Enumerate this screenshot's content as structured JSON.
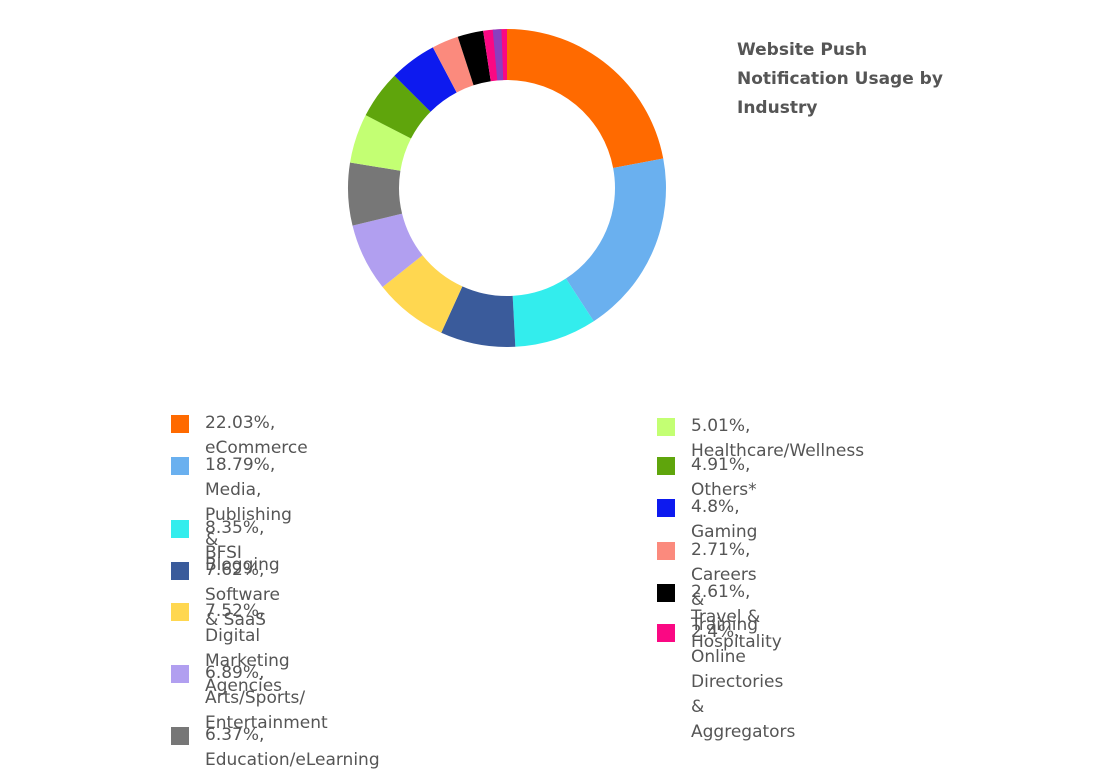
{
  "chart_data": {
    "type": "pie",
    "title": "Website Push Notification Usage by Industry",
    "unit": "%",
    "slices": [
      {
        "label": "22.03%, eCommerce",
        "name": "eCommerce",
        "value": 22.03,
        "color": "#ff6a00"
      },
      {
        "label": "18.79%, Media, Publishing & Blogging",
        "name": "Media, Publishing & Blogging",
        "value": 18.79,
        "color": "#6ab0ef"
      },
      {
        "label": "8.35%, BFSI",
        "name": "BFSI",
        "value": 8.35,
        "color": "#33eded"
      },
      {
        "label": "7.62%, Software & SaaS",
        "name": "Software & SaaS",
        "value": 7.62,
        "color": "#3a5b9b"
      },
      {
        "label": "7.52%, Digital Marketing Agencies",
        "name": "Digital Marketing Agencies",
        "value": 7.52,
        "color": "#ffd750"
      },
      {
        "label": "6.89%, Arts/Sports/ Entertainment",
        "name": "Arts/Sports/ Entertainment",
        "value": 6.89,
        "color": "#b19ff0"
      },
      {
        "label": "6.37%, Education/eLearning",
        "name": "Education/eLearning",
        "value": 6.37,
        "color": "#777777"
      },
      {
        "label": "5.01%, Healthcare/Wellness",
        "name": "Healthcare/Wellness",
        "value": 5.01,
        "color": "#c3ff73"
      },
      {
        "label": "4.91%, Others*",
        "name": "Others*",
        "value": 4.91,
        "color": "#5fa50c"
      },
      {
        "label": "4.8%, Gaming",
        "name": "Gaming",
        "value": 4.8,
        "color": "#0d1aef"
      },
      {
        "label": "2.71%, Careers & Training",
        "name": "Careers & Training",
        "value": 2.71,
        "color": "#fb8a7d"
      },
      {
        "label": "2.61%, Travel & Hospitality",
        "name": "Travel & Hospitality",
        "value": 2.61,
        "color": "#000000"
      },
      {
        "label": "2.4%, Online Directories & Aggregators",
        "name": "Online Directories & Aggregators",
        "value": 2.4,
        "color": "#fa0883"
      }
    ],
    "legend": {
      "left_column": [
        {
          "line1": "22.03%, eCommerce",
          "line2": "",
          "color": "#ff6a00"
        },
        {
          "line1": "18.79%, Media, Publishing &",
          "line2": "Blogging",
          "color": "#6ab0ef"
        },
        {
          "line1": "8.35%, BFSI",
          "line2": "",
          "color": "#33eded"
        },
        {
          "line1": "7.62%, Software & SaaS",
          "line2": "",
          "color": "#3a5b9b"
        },
        {
          "line1": "7.52%, Digital Marketing",
          "line2": "Agencies",
          "color": "#ffd750"
        },
        {
          "line1": "6.89%, Arts/Sports/",
          "line2": "Entertainment",
          "color": "#b19ff0"
        },
        {
          "line1": "6.37%, Education/eLearning",
          "line2": "",
          "color": "#777777"
        }
      ],
      "right_column": [
        {
          "line1": "5.01%, Healthcare/Wellness",
          "line2": "",
          "color": "#c3ff73"
        },
        {
          "line1": "4.91%, Others*",
          "line2": "",
          "color": "#5fa50c"
        },
        {
          "line1": "4.8%, Gaming",
          "line2": "",
          "color": "#0d1aef"
        },
        {
          "line1": "2.71%, Careers & Training",
          "line2": "",
          "color": "#fb8a7d"
        },
        {
          "line1": "2.61%, Travel & Hospitality",
          "line2": "",
          "color": "#000000"
        },
        {
          "line1": "2.4%, Online Directories &",
          "line2": "Aggregators",
          "color": "#fa0883"
        }
      ]
    },
    "sliver_colors": [
      "#8b3fbf"
    ]
  }
}
